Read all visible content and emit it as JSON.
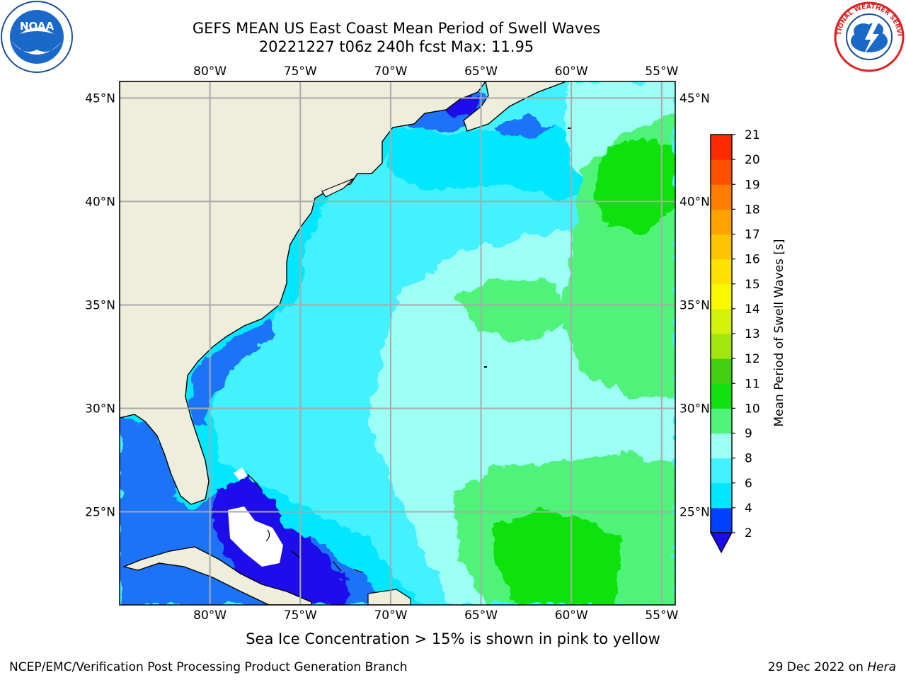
{
  "header": {
    "title_line1": "GEFS MEAN US East Coast Mean Period of Swell Waves",
    "title_line2": "20221227 t06z 240h fcst   Max: 11.95"
  },
  "logos": {
    "left": {
      "icon": "noaa-logo",
      "text": "NOAA",
      "ring_text": "NATIONAL OCEANIC AND ATMOSPHERIC ADMINISTRATION · U.S. DEPARTMENT OF COMMERCE"
    },
    "right": {
      "icon": "nws-logo",
      "ring_text": "NATIONAL WEATHER SERVICE"
    }
  },
  "map": {
    "lon_labels": [
      "80°W",
      "75°W",
      "70°W",
      "65°W",
      "60°W",
      "55°W"
    ],
    "lat_labels": [
      "45°N",
      "40°N",
      "35°N",
      "30°N",
      "25°N"
    ],
    "lon_ticks": [
      -80,
      -75,
      -70,
      -65,
      -60,
      -55
    ],
    "lat_ticks": [
      45,
      40,
      35,
      30,
      25
    ],
    "lon_range": [
      -85,
      -54.25
    ],
    "lat_range": [
      20.5,
      45.8
    ],
    "grid": true,
    "land_color": "#efeedd",
    "colors": {
      "lt2": "#1a0bea",
      "2_4": "#1f73f7",
      "4_6": "#00e7ff",
      "6_8": "#43f1ff",
      "8_9": "#9efff4",
      "9_10": "#4ff37a",
      "10_11": "#11e20f"
    }
  },
  "colorbar": {
    "label": "Mean Period of Swell Waves [s]",
    "levels": [
      2,
      4,
      6,
      8,
      9,
      10,
      11,
      12,
      13,
      14,
      15,
      16,
      17,
      18,
      19,
      20,
      21
    ],
    "tick_labels": [
      "2",
      "4",
      "6",
      "8",
      "9",
      "10",
      "11",
      "12",
      "13",
      "14",
      "15",
      "16",
      "17",
      "18",
      "19",
      "20",
      "21"
    ],
    "colors": [
      "#0040ff",
      "#00e7ff",
      "#43f1ff",
      "#9efff4",
      "#4ff37a",
      "#11e20f",
      "#44d010",
      "#a3e60f",
      "#d2f20a",
      "#f8f800",
      "#ffe200",
      "#ffc400",
      "#ffa100",
      "#ff7d00",
      "#ff5000",
      "#ff2a00"
    ],
    "under_color": "#1a0bea",
    "top_color": "#ff0000"
  },
  "footer": {
    "note": "Sea Ice Concentration > 15% is shown in pink to yellow",
    "credit_left": "NCEP/EMC/Verification Post Processing Product Generation Branch",
    "credit_date": "29 Dec 2022 on ",
    "credit_host": "Hera"
  }
}
